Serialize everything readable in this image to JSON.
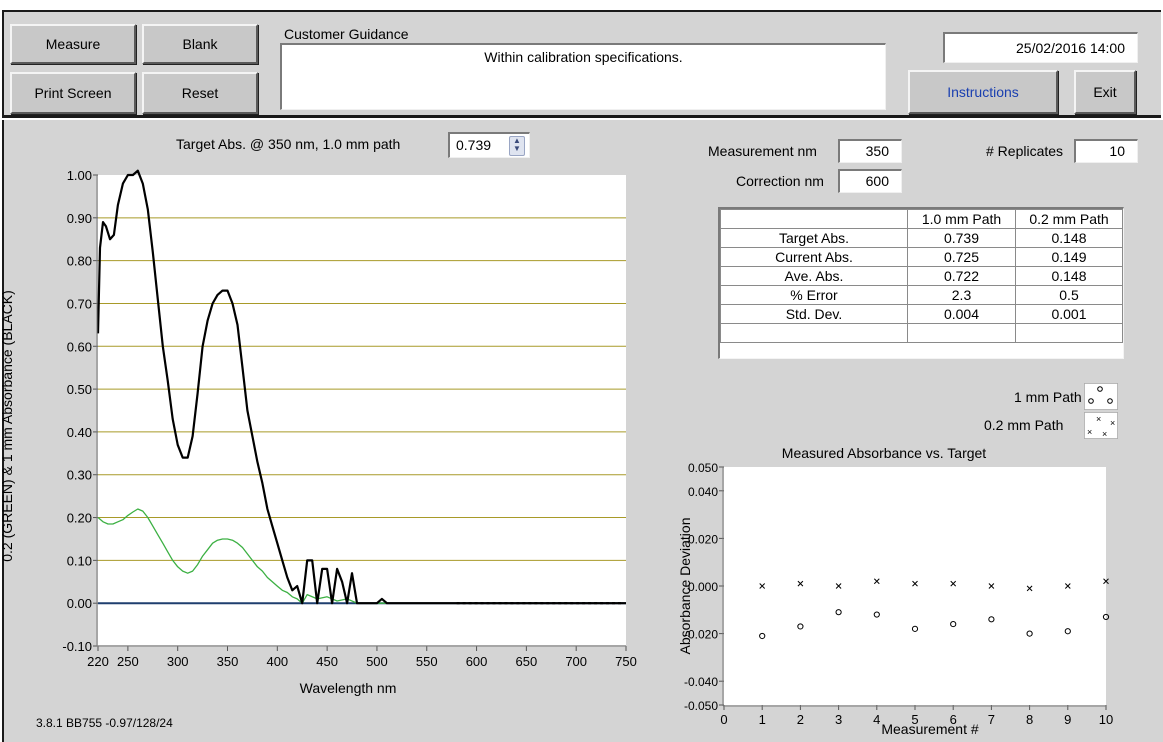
{
  "toolbar": {
    "measure_label": "Measure",
    "blank_label": "Blank",
    "print_screen_label": "Print Screen",
    "reset_label": "Reset",
    "instructions_label": "Instructions",
    "exit_label": "Exit"
  },
  "guidance": {
    "title": "Customer Guidance",
    "message": "Within calibration specifications."
  },
  "datetime": "25/02/2016 14:00",
  "target": {
    "label": "Target Abs. @ 350 nm, 1.0 mm path",
    "value": "0.739"
  },
  "settings": {
    "measurement_nm_label": "Measurement nm",
    "measurement_nm": "350",
    "correction_nm_label": "Correction nm",
    "correction_nm": "600",
    "replicates_label": "# Replicates",
    "replicates": "10"
  },
  "results": {
    "columns": [
      "",
      "1.0 mm Path",
      "0.2 mm Path"
    ],
    "rows": [
      [
        "Target Abs.",
        "0.739",
        "0.148"
      ],
      [
        "Current Abs.",
        "0.725",
        "0.149"
      ],
      [
        "Ave. Abs.",
        "0.722",
        "0.148"
      ],
      [
        "% Error",
        "2.3",
        "0.5"
      ],
      [
        "Std. Dev.",
        "0.004",
        "0.001"
      ],
      [
        "",
        "",
        ""
      ]
    ]
  },
  "legend": {
    "one_mm": "1 mm Path",
    "point_two_mm": "0.2 mm Path"
  },
  "version": "3.8.1 BB755 -0.97/128/24",
  "colors": {
    "panel": "#d4d4d4",
    "black_trace": "#000000",
    "green_trace": "#3cb043",
    "baseline": "#1f3f6f",
    "grid": "#a89a28",
    "instructions_text": "#1a3fb0"
  },
  "chart_data": [
    {
      "type": "line",
      "title": "",
      "xlabel": "Wavelength nm",
      "ylabel": "0.2 (GREEN) & 1 mm Absorbance (BLACK)",
      "xlim": [
        220,
        750
      ],
      "ylim": [
        -0.1,
        1.0
      ],
      "x_ticks": [
        "220",
        "250",
        "300",
        "350",
        "400",
        "450",
        "500",
        "550",
        "600",
        "650",
        "700",
        "750"
      ],
      "y_ticks": [
        "-0.10",
        "0.00",
        "0.10",
        "0.20",
        "0.30",
        "0.40",
        "0.50",
        "0.60",
        "0.70",
        "0.80",
        "0.90",
        "1.00"
      ],
      "grid": "horizontal",
      "series": [
        {
          "color": "#000000",
          "x": [
            220,
            222,
            225,
            228,
            232,
            236,
            240,
            245,
            250,
            255,
            260,
            265,
            270,
            275,
            280,
            285,
            290,
            295,
            300,
            305,
            310,
            315,
            320,
            325,
            330,
            335,
            340,
            345,
            350,
            355,
            360,
            365,
            370,
            375,
            380,
            385,
            390,
            395,
            400,
            405,
            410,
            415,
            420,
            425,
            430,
            435,
            440,
            445,
            450,
            455,
            460,
            465,
            470,
            475,
            480,
            490,
            500,
            505,
            510,
            520,
            550,
            600,
            650,
            700,
            750
          ],
          "y": [
            0.63,
            0.83,
            0.89,
            0.88,
            0.85,
            0.86,
            0.93,
            0.98,
            1.0,
            1.0,
            1.01,
            0.98,
            0.92,
            0.82,
            0.71,
            0.6,
            0.52,
            0.43,
            0.37,
            0.34,
            0.34,
            0.39,
            0.49,
            0.6,
            0.66,
            0.7,
            0.72,
            0.73,
            0.73,
            0.7,
            0.65,
            0.55,
            0.45,
            0.39,
            0.33,
            0.28,
            0.22,
            0.18,
            0.14,
            0.1,
            0.06,
            0.03,
            0.04,
            0.0,
            0.1,
            0.1,
            0.0,
            0.08,
            0.08,
            0.0,
            0.08,
            0.05,
            0.0,
            0.07,
            0.0,
            0.0,
            0.0,
            0.01,
            0.0,
            0.0,
            0.0,
            0.0,
            0.0,
            0.0,
            0.0
          ]
        },
        {
          "color": "#3cb043",
          "x": [
            220,
            225,
            230,
            235,
            240,
            245,
            250,
            255,
            260,
            265,
            270,
            275,
            280,
            285,
            290,
            295,
            300,
            305,
            310,
            315,
            320,
            325,
            330,
            335,
            340,
            345,
            350,
            355,
            360,
            365,
            370,
            375,
            380,
            385,
            390,
            395,
            400,
            405,
            410,
            415,
            420,
            425,
            430,
            440,
            450,
            460,
            470,
            480,
            500,
            750
          ],
          "y": [
            0.2,
            0.19,
            0.185,
            0.185,
            0.19,
            0.195,
            0.205,
            0.213,
            0.22,
            0.215,
            0.2,
            0.18,
            0.16,
            0.14,
            0.12,
            0.1,
            0.085,
            0.075,
            0.07,
            0.075,
            0.09,
            0.11,
            0.125,
            0.14,
            0.147,
            0.15,
            0.15,
            0.147,
            0.14,
            0.13,
            0.115,
            0.1,
            0.085,
            0.075,
            0.06,
            0.05,
            0.04,
            0.03,
            0.025,
            0.015,
            0.01,
            0.0,
            0.02,
            0.01,
            0.015,
            0.005,
            0.01,
            0.0,
            0.0,
            0.0
          ]
        },
        {
          "color": "#1f3f6f",
          "x": [
            220,
            750
          ],
          "y": [
            0.0,
            0.0
          ]
        }
      ]
    },
    {
      "type": "scatter",
      "title": "Measured Absorbance vs. Target",
      "xlabel": "Measurement #",
      "ylabel": "Absorbance Deviation",
      "xlim": [
        0,
        10
      ],
      "ylim": [
        -0.05,
        0.05
      ],
      "x_ticks": [
        "0",
        "1",
        "2",
        "3",
        "4",
        "5",
        "6",
        "7",
        "8",
        "9",
        "10"
      ],
      "y_ticks": [
        "-0.050",
        "-0.040",
        "-0.020",
        "0.000",
        "0.020",
        "0.040",
        "0.050"
      ],
      "series": [
        {
          "name": "1 mm Path",
          "marker": "o",
          "x": [
            1,
            2,
            3,
            4,
            5,
            6,
            7,
            8,
            9,
            10
          ],
          "y": [
            -0.021,
            -0.017,
            -0.011,
            -0.012,
            -0.018,
            -0.016,
            -0.014,
            -0.02,
            -0.019,
            -0.013
          ]
        },
        {
          "name": "0.2 mm Path",
          "marker": "x",
          "x": [
            1,
            2,
            3,
            4,
            5,
            6,
            7,
            8,
            9,
            10
          ],
          "y": [
            0.0,
            0.001,
            0.0,
            0.002,
            0.001,
            0.001,
            0.0,
            -0.001,
            0.0,
            0.002
          ]
        }
      ]
    }
  ]
}
